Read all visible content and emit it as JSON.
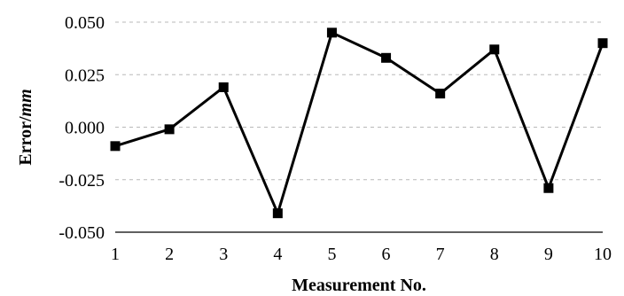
{
  "chart_data": {
    "type": "line",
    "x": [
      1,
      2,
      3,
      4,
      5,
      6,
      7,
      8,
      9,
      10
    ],
    "series": [
      {
        "values": [
          -0.009,
          -0.001,
          0.019,
          -0.041,
          0.045,
          0.033,
          0.016,
          0.037,
          -0.029,
          0.04
        ]
      }
    ],
    "xlabel": "Measurement No.",
    "ylabel_prefix": "Error/",
    "ylabel_unit": "mm",
    "xlim": [
      1,
      10
    ],
    "ylim": [
      -0.05,
      0.05
    ],
    "x_ticks": [
      "1",
      "2",
      "3",
      "4",
      "5",
      "6",
      "7",
      "8",
      "9",
      "10"
    ],
    "y_ticks": [
      {
        "value": -0.05,
        "label": "-0.050"
      },
      {
        "value": -0.025,
        "label": "-0.025"
      },
      {
        "value": 0.0,
        "label": "0.000"
      },
      {
        "value": 0.025,
        "label": "0.025"
      },
      {
        "value": 0.05,
        "label": "0.050"
      }
    ],
    "grid": true,
    "marker": "square",
    "color": "#000000"
  }
}
